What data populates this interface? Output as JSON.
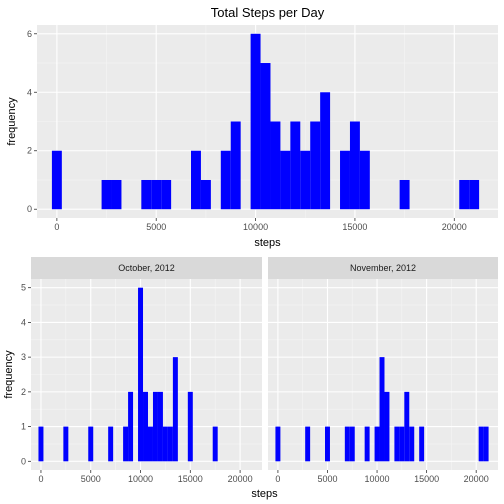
{
  "chart_data": [
    {
      "type": "bar",
      "title": "Total Steps per Day",
      "xlabel": "steps",
      "ylabel": "frequency",
      "bar_color": "#0000FF",
      "panel_bg": "#EBEBEB",
      "grid": true,
      "xlim": [
        -1000,
        22200
      ],
      "ylim": [
        -0.3,
        6.3
      ],
      "xticks": [
        0,
        5000,
        10000,
        15000,
        20000
      ],
      "yticks": [
        0,
        2,
        4,
        6
      ],
      "bin_width": 500,
      "bins": [
        {
          "x": 0,
          "count": 2
        },
        {
          "x": 2500,
          "count": 1
        },
        {
          "x": 3000,
          "count": 1
        },
        {
          "x": 4500,
          "count": 1
        },
        {
          "x": 5000,
          "count": 1
        },
        {
          "x": 5500,
          "count": 1
        },
        {
          "x": 7000,
          "count": 2
        },
        {
          "x": 7500,
          "count": 1
        },
        {
          "x": 8500,
          "count": 2
        },
        {
          "x": 9000,
          "count": 3
        },
        {
          "x": 10000,
          "count": 6
        },
        {
          "x": 10500,
          "count": 5
        },
        {
          "x": 11000,
          "count": 3
        },
        {
          "x": 11500,
          "count": 2
        },
        {
          "x": 12000,
          "count": 3
        },
        {
          "x": 12500,
          "count": 2
        },
        {
          "x": 13000,
          "count": 3
        },
        {
          "x": 13500,
          "count": 4
        },
        {
          "x": 14500,
          "count": 2
        },
        {
          "x": 15000,
          "count": 3
        },
        {
          "x": 15500,
          "count": 2
        },
        {
          "x": 17500,
          "count": 1
        },
        {
          "x": 20500,
          "count": 1
        },
        {
          "x": 21000,
          "count": 1
        }
      ]
    },
    {
      "type": "bar",
      "xlabel": "steps",
      "ylabel": "frequency",
      "bar_color": "#0000FF",
      "panel_bg": "#EBEBEB",
      "strip_bg": "#D9D9D9",
      "grid": true,
      "xlim": [
        -1000,
        22200
      ],
      "ylim": [
        -0.25,
        5.25
      ],
      "xticks": [
        0,
        5000,
        10000,
        15000,
        20000
      ],
      "yticks": [
        0,
        1,
        2,
        3,
        4,
        5
      ],
      "bin_width": 500,
      "facets": [
        {
          "label": "October, 2012",
          "bins": [
            {
              "x": 0,
              "count": 1
            },
            {
              "x": 2500,
              "count": 1
            },
            {
              "x": 5000,
              "count": 1
            },
            {
              "x": 7000,
              "count": 1
            },
            {
              "x": 8500,
              "count": 1
            },
            {
              "x": 9000,
              "count": 2
            },
            {
              "x": 10000,
              "count": 5
            },
            {
              "x": 10500,
              "count": 2
            },
            {
              "x": 11000,
              "count": 1
            },
            {
              "x": 11500,
              "count": 2
            },
            {
              "x": 12000,
              "count": 2
            },
            {
              "x": 12500,
              "count": 1
            },
            {
              "x": 13000,
              "count": 1
            },
            {
              "x": 13500,
              "count": 3
            },
            {
              "x": 15000,
              "count": 2
            },
            {
              "x": 17500,
              "count": 1
            }
          ]
        },
        {
          "label": "November, 2012",
          "bins": [
            {
              "x": 0,
              "count": 1
            },
            {
              "x": 3000,
              "count": 1
            },
            {
              "x": 5000,
              "count": 1
            },
            {
              "x": 7000,
              "count": 1
            },
            {
              "x": 7500,
              "count": 1
            },
            {
              "x": 9000,
              "count": 1
            },
            {
              "x": 10000,
              "count": 1
            },
            {
              "x": 10500,
              "count": 3
            },
            {
              "x": 11000,
              "count": 2
            },
            {
              "x": 12000,
              "count": 1
            },
            {
              "x": 12500,
              "count": 1
            },
            {
              "x": 13000,
              "count": 2
            },
            {
              "x": 13500,
              "count": 1
            },
            {
              "x": 14500,
              "count": 1
            },
            {
              "x": 20500,
              "count": 1
            },
            {
              "x": 21000,
              "count": 1
            }
          ]
        }
      ]
    }
  ]
}
